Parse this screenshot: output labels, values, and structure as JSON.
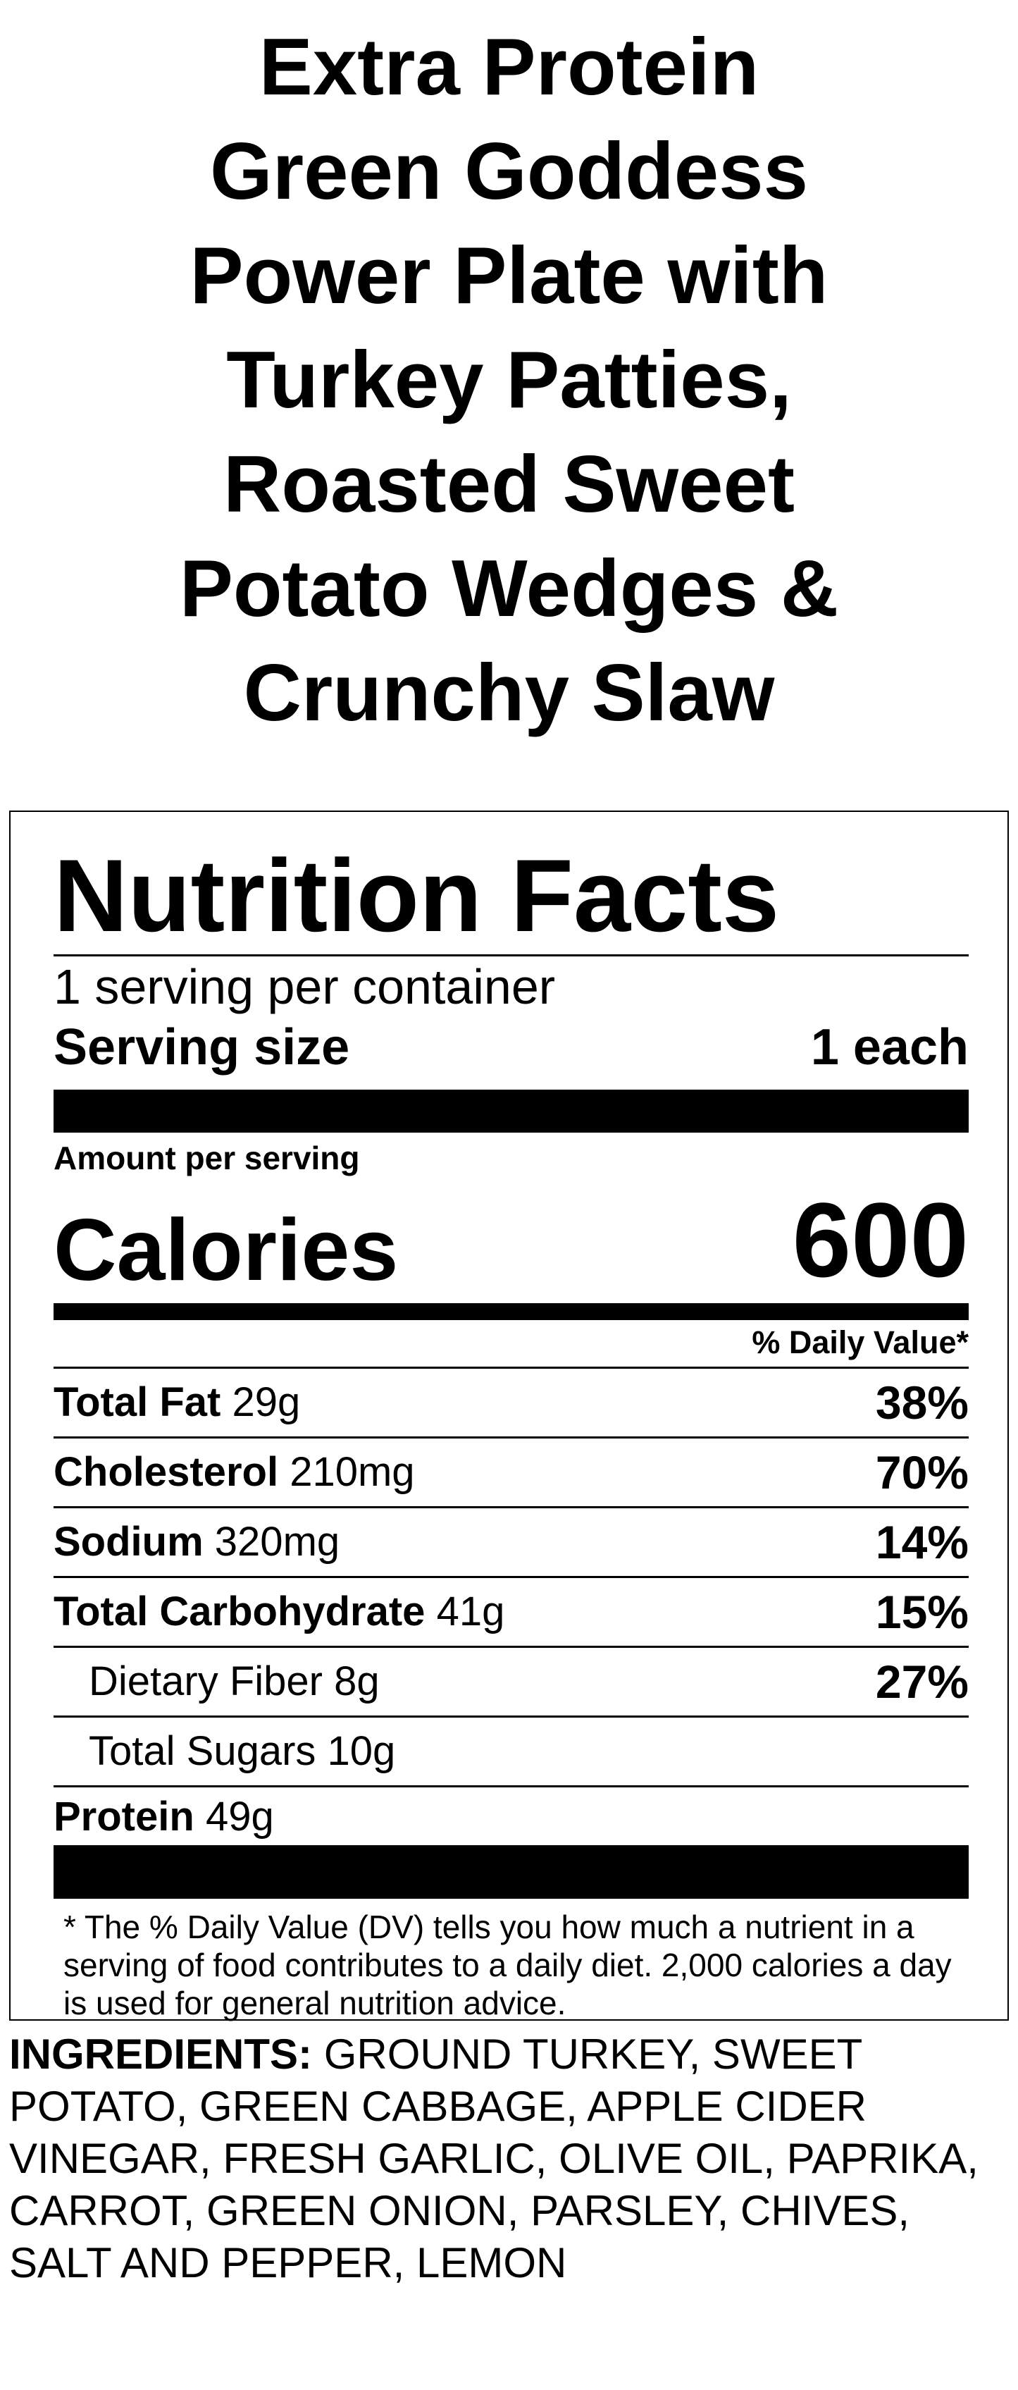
{
  "title_lines": [
    "Extra Protein",
    "Green Goddess",
    "Power Plate with",
    "Turkey Patties,",
    "Roasted Sweet",
    "Potato Wedges &",
    "Crunchy Slaw"
  ],
  "label": {
    "heading": "Nutrition Facts",
    "servings_per_container": "1 serving per container",
    "serving_size_label": "Serving size",
    "serving_size_value": "1 each",
    "amount_per_serving": "Amount per serving",
    "calories_label": "Calories",
    "calories_value": "600",
    "daily_value_header": "% Daily Value*",
    "nutrients": [
      {
        "name": "Total Fat",
        "amount": "29g",
        "dv": "38%"
      },
      {
        "name": "Cholesterol",
        "amount": "210mg",
        "dv": "70%"
      },
      {
        "name": "Sodium",
        "amount": "320mg",
        "dv": "14%"
      },
      {
        "name": "Total Carbohydrate",
        "amount": "41g",
        "dv": "15%"
      },
      {
        "name": "Dietary Fiber 8g",
        "dv": "27%"
      },
      {
        "name": "Total Sugars 10g"
      },
      {
        "name": "Protein",
        "amount": "49g"
      }
    ],
    "footnote": "* The % Daily Value (DV) tells you how much a nutrient in a serving of food contributes to a daily diet. 2,000 calories a day is used for general nutrition advice."
  },
  "ingredients": {
    "label": "INGREDIENTS:",
    "text": "GROUND TURKEY, SWEET POTATO, GREEN CABBAGE, APPLE CIDER VINEGAR, FRESH GARLIC, OLIVE OIL, PAPRIKA, CARROT, GREEN ONION, PARSLEY, CHIVES, SALT AND PEPPER, LEMON"
  }
}
